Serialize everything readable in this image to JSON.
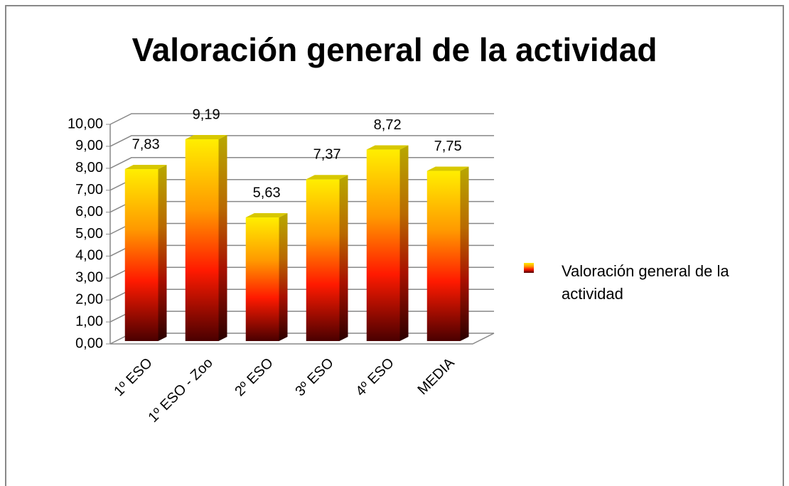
{
  "chart_data": {
    "type": "bar3d",
    "title": "Valoración general de la actividad",
    "categories": [
      "1º ESO",
      "1º ESO - Zoo",
      "2º ESO",
      "3º ESO",
      "4º ESO",
      "MEDIA"
    ],
    "series": [
      {
        "name": "Valoración general de la actividad",
        "values": [
          7.83,
          9.19,
          5.63,
          7.37,
          8.72,
          7.75
        ],
        "value_labels": [
          "7,83",
          "9,19",
          "5,63",
          "7,37",
          "8,72",
          "7,75"
        ]
      }
    ],
    "ylim": [
      0,
      10
    ],
    "yticks": [
      {
        "value": 0,
        "label": "0,00"
      },
      {
        "value": 1,
        "label": "1,00"
      },
      {
        "value": 2,
        "label": "2,00"
      },
      {
        "value": 3,
        "label": "3,00"
      },
      {
        "value": 4,
        "label": "4,00"
      },
      {
        "value": 5,
        "label": "5,00"
      },
      {
        "value": 6,
        "label": "6,00"
      },
      {
        "value": 7,
        "label": "7,00"
      },
      {
        "value": 8,
        "label": "8,00"
      },
      {
        "value": 9,
        "label": "9,00"
      },
      {
        "value": 10,
        "label": "10,00"
      }
    ],
    "grid": true,
    "legend": "right"
  }
}
